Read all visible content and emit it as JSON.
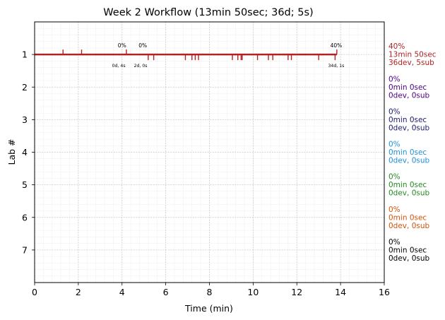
{
  "chart_data": {
    "type": "scatter",
    "title": "Week 2 Workflow (13min 50sec; 36d; 5s)",
    "xlabel": "Time (min)",
    "ylabel": "Lab #",
    "xlim": [
      0,
      16
    ],
    "ylim": [
      8,
      0
    ],
    "x_ticks": [
      0,
      2,
      4,
      6,
      8,
      10,
      12,
      14,
      16
    ],
    "y_ticks": [
      1,
      2,
      3,
      4,
      5,
      6,
      7
    ],
    "grid": true,
    "timeline": {
      "lab": 1,
      "start": 0,
      "end": 13.83,
      "color": "#b22222"
    },
    "events": [
      {
        "x": 1.3,
        "dir": "up"
      },
      {
        "x": 2.15,
        "dir": "up"
      },
      {
        "x": 4.2,
        "dir": "up"
      },
      {
        "x": 5.2,
        "dir": "down"
      },
      {
        "x": 5.45,
        "dir": "down"
      },
      {
        "x": 6.9,
        "dir": "down"
      },
      {
        "x": 7.2,
        "dir": "down"
      },
      {
        "x": 7.35,
        "dir": "down"
      },
      {
        "x": 7.5,
        "dir": "down"
      },
      {
        "x": 9.05,
        "dir": "down"
      },
      {
        "x": 9.3,
        "dir": "down"
      },
      {
        "x": 9.45,
        "dir": "down"
      },
      {
        "x": 9.5,
        "dir": "down"
      },
      {
        "x": 10.2,
        "dir": "down"
      },
      {
        "x": 10.7,
        "dir": "down"
      },
      {
        "x": 10.9,
        "dir": "down"
      },
      {
        "x": 11.6,
        "dir": "down"
      },
      {
        "x": 11.75,
        "dir": "down"
      },
      {
        "x": 13.0,
        "dir": "down"
      },
      {
        "x": 13.75,
        "dir": "down"
      },
      {
        "x": 13.83,
        "dir": "up"
      }
    ],
    "annotations": [
      {
        "x": 4.0,
        "pos": "above",
        "text": "0%"
      },
      {
        "x": 4.95,
        "pos": "above",
        "text": "0%"
      },
      {
        "x": 13.8,
        "pos": "above",
        "text": "40%"
      },
      {
        "x": 3.85,
        "pos": "below",
        "text": "0d, 4s"
      },
      {
        "x": 4.85,
        "pos": "below",
        "text": "2d, 0s"
      },
      {
        "x": 13.8,
        "pos": "below",
        "text": "34d, 1s"
      }
    ],
    "labs": [
      {
        "lab": 1,
        "color": "#b22222",
        "lines": [
          "40%",
          "13min 50sec",
          "36dev, 5sub"
        ]
      },
      {
        "lab": 2,
        "color": "#4b0082",
        "lines": [
          "0%",
          "0min 0sec",
          "0dev, 0sub"
        ]
      },
      {
        "lab": 3,
        "color": "#191970",
        "lines": [
          "0%",
          "0min 0sec",
          "0dev, 0sub"
        ]
      },
      {
        "lab": 4,
        "color": "#1e90d6",
        "lines": [
          "0%",
          "0min 0sec",
          "0dev, 0sub"
        ]
      },
      {
        "lab": 5,
        "color": "#228b22",
        "lines": [
          "0%",
          "0min 0sec",
          "0dev, 0sub"
        ]
      },
      {
        "lab": 6,
        "color": "#d2550a",
        "lines": [
          "0%",
          "0min 0sec",
          "0dev, 0sub"
        ]
      },
      {
        "lab": 7,
        "color": "#000000",
        "lines": [
          "0%",
          "0min 0sec",
          "0dev, 0sub"
        ]
      }
    ]
  }
}
